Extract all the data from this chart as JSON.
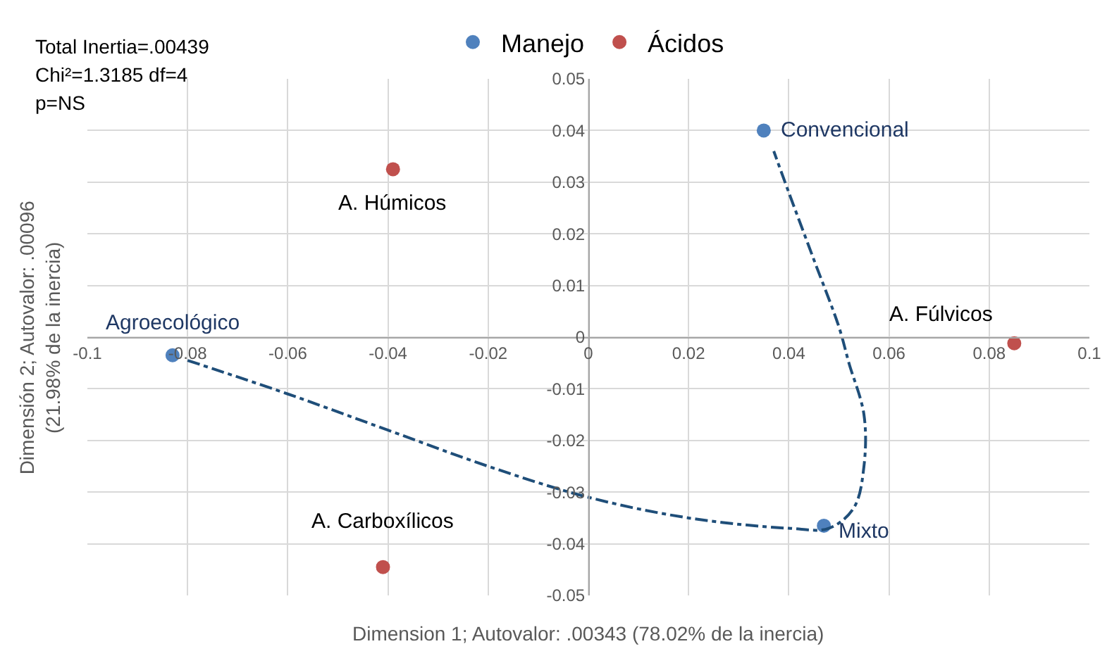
{
  "chart_data": {
    "type": "scatter",
    "xlabel": "Dimension 1; Autovalor: .00343 (78.02% de la inercia)",
    "ylabel": "Dimensión 2; Autovalor: .00096 (21.98% de la inercia)",
    "xlim": [
      -0.1,
      0.1
    ],
    "xticks": [
      -0.1,
      -0.08,
      -0.06,
      -0.04,
      -0.02,
      0,
      0.02,
      0.04,
      0.06,
      0.08,
      0.1
    ],
    "ylim": [
      -0.05,
      0.05
    ],
    "yticks": [
      -0.05,
      -0.04,
      -0.03,
      -0.02,
      -0.01,
      0,
      0.01,
      0.02,
      0.03,
      0.04,
      0.05
    ],
    "grid": true,
    "legend": "top",
    "marker": "circle",
    "series": [
      {
        "name": "Manejo",
        "color": "#4f81bd",
        "x": [
          0.035,
          0.047,
          -0.083
        ],
        "values": [
          0.04,
          -0.0365,
          -0.0035
        ]
      },
      {
        "name": "Ácidos",
        "color": "#c0504d",
        "x": [
          -0.039,
          0.085,
          -0.041
        ],
        "values": [
          0.0325,
          -0.0012,
          -0.0445
        ]
      },
      {
        "type": "line",
        "color": "#1f4e79",
        "line_style": "dashdot",
        "marker": "none",
        "x": [
          -0.08,
          -0.06,
          -0.04,
          -0.02,
          0,
          0.02,
          0.04,
          0.048,
          0.053,
          0.055,
          0.055,
          0.052,
          0.05,
          0.045,
          0.04,
          0.037
        ],
        "values": [
          -0.0045,
          -0.011,
          -0.018,
          -0.025,
          -0.031,
          -0.035,
          -0.037,
          -0.037,
          -0.033,
          -0.025,
          -0.015,
          -0.005,
          0.002,
          0.015,
          0.028,
          0.036
        ]
      }
    ],
    "annotations": [
      "Total Inertia=.00439",
      "Chi²=1.3185 df=4",
      "p=NS",
      {
        "text": "Convencional",
        "x": 0.035,
        "y": 0.04
      },
      {
        "text": "Mixto",
        "x": 0.047,
        "y": -0.0365
      },
      {
        "text": "Agroecológico",
        "x": -0.083,
        "y": -0.0035
      },
      {
        "text": "A. Húmicos",
        "x": -0.039,
        "y": 0.0325
      },
      {
        "text": "A. Fúlvicos",
        "x": 0.085,
        "y": -0.0012
      },
      {
        "text": "A. Carboxílicos",
        "x": -0.041,
        "y": -0.0445
      }
    ]
  }
}
